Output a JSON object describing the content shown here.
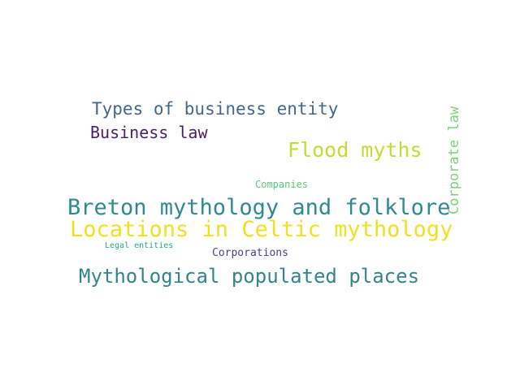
{
  "words": [
    {
      "text": "Types of business entity",
      "color": "#44678e"
    },
    {
      "text": "Business law",
      "color": "#4c1e6a"
    },
    {
      "text": "Flood myths",
      "color": "#c3dd35"
    },
    {
      "text": "Corporate law",
      "color": "#7ed07a"
    },
    {
      "text": "Companies",
      "color": "#5ec87a"
    },
    {
      "text": "Breton mythology and folklore",
      "color": "#2f8a92"
    },
    {
      "text": "Locations in Celtic mythology",
      "color": "#f0e125"
    },
    {
      "text": "Legal entities",
      "color": "#24a88c"
    },
    {
      "text": "Corporations",
      "color": "#4f3f8f"
    },
    {
      "text": "Mythological populated places",
      "color": "#33848d"
    }
  ]
}
